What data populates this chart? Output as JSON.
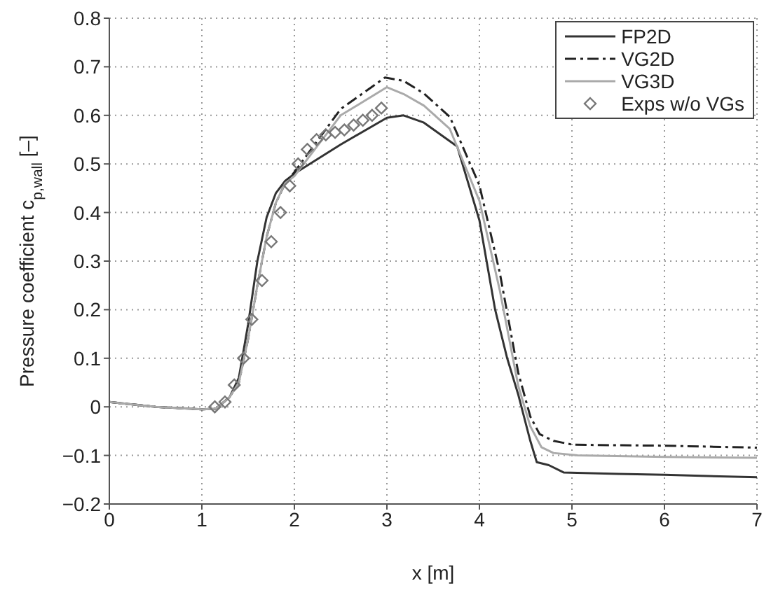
{
  "chart_data": {
    "type": "line",
    "xlabel": "x   [m]",
    "ylabel": "Pressure coefficient c$_{p,wall}$   [–]",
    "xlim": [
      0,
      7
    ],
    "ylim": [
      -0.2,
      0.8
    ],
    "xticks": [
      0,
      1,
      2,
      3,
      4,
      5,
      6,
      7
    ],
    "yticks": [
      -0.2,
      -0.1,
      0,
      0.1,
      0.2,
      0.3,
      0.4,
      0.5,
      0.6,
      0.7,
      0.8
    ],
    "grid": true,
    "legend": "top right",
    "series": [
      {
        "name": "FP2D",
        "color": "#333333",
        "line_style": "solid",
        "marker": "none",
        "x": [
          0,
          0.5,
          1,
          1.15,
          1.3,
          1.4,
          1.5,
          1.6,
          1.7,
          1.8,
          1.9,
          2,
          2.5,
          3,
          3.18,
          3.4,
          3.76,
          4,
          4.17,
          4.3,
          4.42,
          4.55,
          4.62,
          4.75,
          4.91,
          5.5,
          6,
          7
        ],
        "values": [
          0.01,
          0,
          -0.005,
          -0.004,
          0.02,
          0.06,
          0.17,
          0.3,
          0.39,
          0.44,
          0.465,
          0.48,
          0.54,
          0.595,
          0.6,
          0.585,
          0.536,
          0.384,
          0.2,
          0.1,
          0.025,
          -0.07,
          -0.114,
          -0.12,
          -0.135,
          -0.138,
          -0.14,
          -0.145
        ]
      },
      {
        "name": "VG2D",
        "color": "#222222",
        "line_style": "dashdot",
        "marker": "none",
        "x": [
          0,
          0.5,
          1,
          1.15,
          1.3,
          1.4,
          1.5,
          1.6,
          1.7,
          1.8,
          1.9,
          2,
          2.5,
          2.98,
          3.18,
          3.4,
          3.68,
          4,
          4.22,
          4.42,
          4.55,
          4.65,
          4.8,
          5.01,
          6,
          7
        ],
        "values": [
          0.01,
          0,
          -0.005,
          -0.004,
          0.02,
          0.05,
          0.14,
          0.25,
          0.35,
          0.42,
          0.46,
          0.483,
          0.613,
          0.678,
          0.671,
          0.645,
          0.597,
          0.456,
          0.276,
          0.07,
          -0.02,
          -0.056,
          -0.07,
          -0.078,
          -0.08,
          -0.084
        ]
      },
      {
        "name": "VG3D",
        "color": "#aaaaaa",
        "line_style": "solid",
        "marker": "none",
        "x": [
          0,
          0.5,
          1,
          1.15,
          1.3,
          1.4,
          1.5,
          1.6,
          1.7,
          1.8,
          1.9,
          2,
          2.5,
          3,
          3.18,
          3.4,
          3.68,
          4,
          4.22,
          4.42,
          4.55,
          4.67,
          4.8,
          5.06,
          6,
          7
        ],
        "values": [
          0.01,
          0,
          -0.005,
          -0.004,
          0.02,
          0.05,
          0.14,
          0.25,
          0.35,
          0.42,
          0.46,
          0.475,
          0.6,
          0.658,
          0.644,
          0.62,
          0.572,
          0.424,
          0.24,
          0.043,
          -0.04,
          -0.083,
          -0.095,
          -0.1,
          -0.103,
          -0.105
        ]
      },
      {
        "name": "Exps w/o VGs",
        "type": "scatter",
        "color": "#777777",
        "marker": "diamond",
        "x": [
          1.14,
          1.25,
          1.35,
          1.45,
          1.54,
          1.65,
          1.75,
          1.85,
          1.95,
          2.04,
          2.14,
          2.24,
          2.34,
          2.44,
          2.54,
          2.64,
          2.74,
          2.84,
          2.94
        ],
        "values": [
          0,
          0.01,
          0.045,
          0.1,
          0.18,
          0.26,
          0.34,
          0.4,
          0.455,
          0.5,
          0.53,
          0.55,
          0.56,
          0.565,
          0.57,
          0.58,
          0.59,
          0.6,
          0.615
        ]
      }
    ]
  }
}
